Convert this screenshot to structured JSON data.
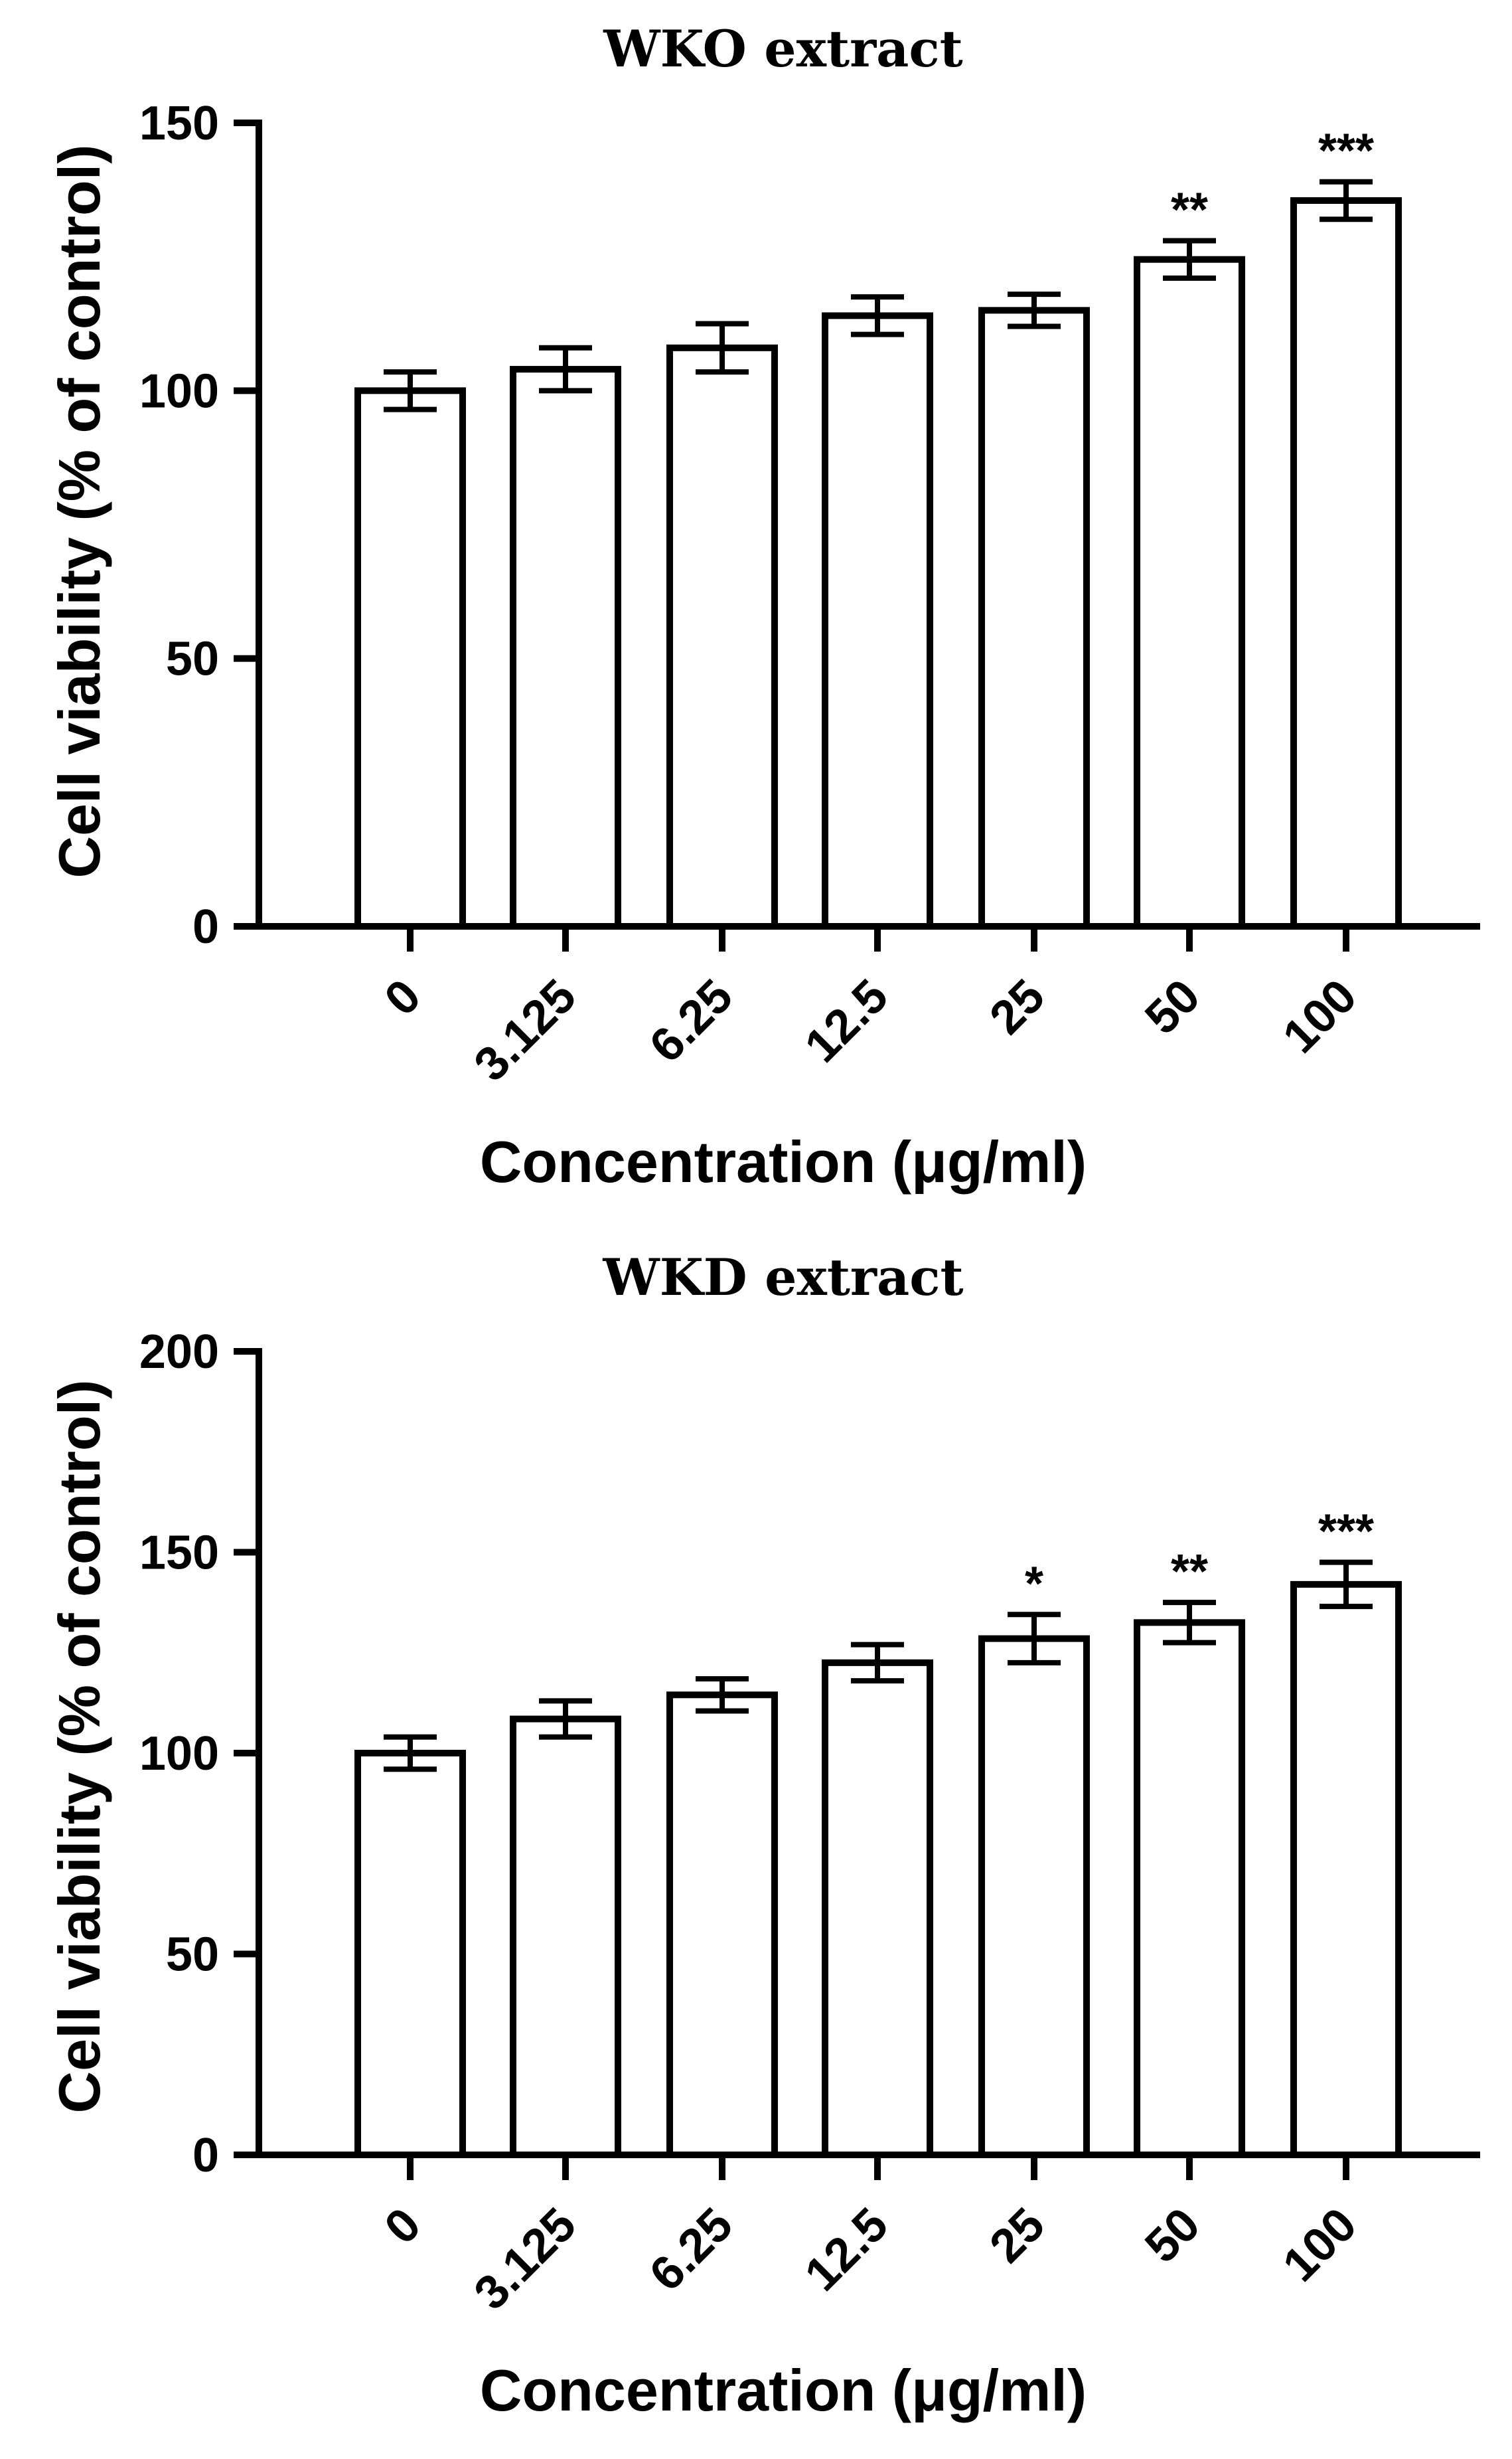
{
  "chart_data": [
    {
      "type": "bar",
      "title": "WKO extract",
      "xlabel": "Concentration (μg/ml)",
      "ylabel": "Cell viability (% of control)",
      "ylim": [
        0,
        150
      ],
      "yticks": [
        0,
        50,
        100,
        150
      ],
      "categories": [
        "0",
        "3.125",
        "6.25",
        "12.5",
        "25",
        "50",
        "100"
      ],
      "values": [
        100,
        104,
        108,
        114,
        115,
        124.5,
        135.5
      ],
      "errors": [
        3.5,
        4,
        4.5,
        3.5,
        3,
        3.5,
        3.5
      ],
      "significance": [
        "",
        "",
        "",
        "",
        "",
        "**",
        "***"
      ]
    },
    {
      "type": "bar",
      "title": "WKD extract",
      "xlabel": "Concentration (μg/ml)",
      "ylabel": "Cell viability (% of control)",
      "ylim": [
        0,
        200
      ],
      "yticks": [
        0,
        50,
        100,
        150,
        200
      ],
      "categories": [
        "0",
        "3.125",
        "6.25",
        "12.5",
        "25",
        "50",
        "100"
      ],
      "values": [
        100,
        108.5,
        114.5,
        122.5,
        128.5,
        132.5,
        142
      ],
      "errors": [
        4,
        4.5,
        4,
        4.5,
        6,
        5,
        5.5
      ],
      "significance": [
        "",
        "",
        "",
        "",
        "*",
        "**",
        "***"
      ]
    }
  ]
}
